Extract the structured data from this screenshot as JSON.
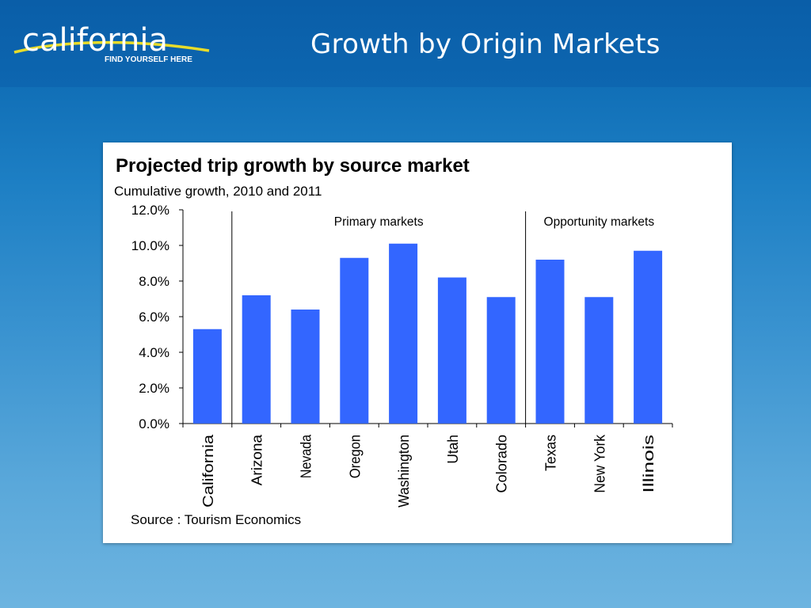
{
  "header": {
    "logo": {
      "wordmark": "california",
      "tagline": "FIND YOURSELF HERE"
    },
    "title": "Growth by Origin Markets"
  },
  "colors": {
    "bar": "#3366ff",
    "text": "#000000",
    "background": "#1a78c2",
    "title_text": "#ffffff",
    "swoosh": "#e8dc2a"
  },
  "chart_data": {
    "type": "bar",
    "title": "Projected trip growth by source market",
    "subtitle": "Cumulative growth, 2010 and 2011",
    "categories": [
      "California",
      "Arizona",
      "Nevada",
      "Oregon",
      "Washington",
      "Utah",
      "Colorado",
      "Texas",
      "New York",
      "Illinois"
    ],
    "values": [
      5.3,
      7.2,
      6.4,
      9.3,
      10.1,
      8.2,
      7.1,
      9.2,
      7.1,
      9.7
    ],
    "y_tick_labels": [
      "0.0%",
      "2.0%",
      "4.0%",
      "6.0%",
      "8.0%",
      "10.0%",
      "12.0%"
    ],
    "ylim": [
      0,
      12
    ],
    "y_unit": "%",
    "grid": false,
    "groups": [
      {
        "label": "Primary markets",
        "categories": [
          "Arizona",
          "Nevada",
          "Oregon",
          "Washington",
          "Utah",
          "Colorado"
        ]
      },
      {
        "label": "Opportunity markets",
        "categories": [
          "Texas",
          "New York",
          "Illinois"
        ]
      }
    ],
    "source": "Source : Tourism Economics"
  }
}
